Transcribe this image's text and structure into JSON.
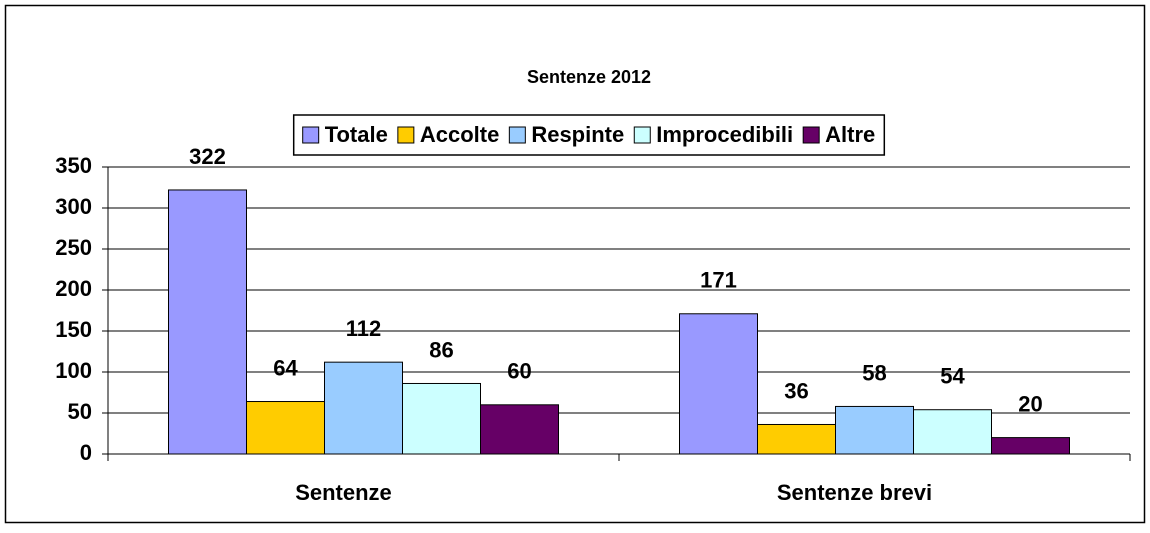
{
  "chart_data": {
    "type": "bar",
    "title": "Sentenze 2012",
    "categories": [
      "Sentenze",
      "Sentenze brevi"
    ],
    "series": [
      {
        "name": "Totale",
        "color": "#9999ff",
        "values": [
          322,
          171
        ]
      },
      {
        "name": "Accolte",
        "color": "#ffcc00",
        "values": [
          64,
          36
        ]
      },
      {
        "name": "Respinte",
        "color": "#99ccff",
        "values": [
          112,
          58
        ]
      },
      {
        "name": "Improcedibili",
        "color": "#ccffff",
        "values": [
          86,
          54
        ]
      },
      {
        "name": "Altre",
        "color": "#660066",
        "values": [
          60,
          20
        ]
      }
    ],
    "ylim": [
      0,
      350
    ],
    "yticks": [
      0,
      50,
      100,
      150,
      200,
      250,
      300,
      350
    ],
    "grid": true,
    "legend": "top"
  }
}
